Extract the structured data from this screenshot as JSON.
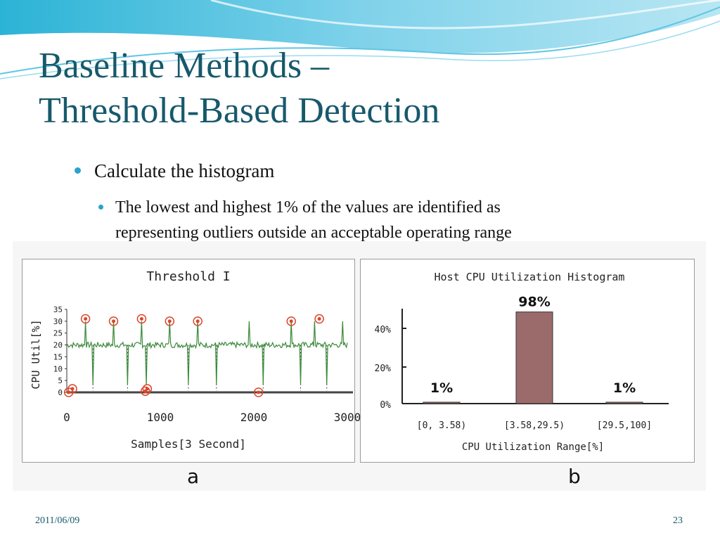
{
  "slide": {
    "title_line1": "Baseline Methods –",
    "title_line2": "Threshold-Based Detection",
    "bullet_main": "Calculate the histogram",
    "bullet_sub_line1": "The lowest and highest 1% of the values are identified as",
    "bullet_sub_line2": "representing outliers outside an acceptable operating range",
    "footer_date": "2011/06/09",
    "page_number": "23",
    "colors": {
      "title": "#17596b",
      "bullet": "#2aa3c8",
      "line": "#3a8a3a",
      "marker": "#d9472b",
      "bar": "#9b6b6b"
    }
  },
  "figure_labels": {
    "a": "a",
    "b": "b"
  },
  "chart_data": [
    {
      "type": "line",
      "title": "Threshold I",
      "xlabel": "Samples[3 Second]",
      "ylabel": "CPU Util[%]",
      "xlim": [
        0,
        3000
      ],
      "ylim": [
        0,
        35
      ],
      "x_ticks": [
        "0",
        "1000",
        "2000",
        "3000"
      ],
      "y_ticks": [
        "0",
        "5",
        "10",
        "15",
        "20",
        "25",
        "30",
        "35"
      ],
      "baseline": 20,
      "noise": 1.2,
      "spikes_up": [
        200,
        500,
        800,
        1100,
        1400,
        1950,
        2400,
        2650,
        2950
      ],
      "spikes_down": [
        280,
        650,
        850,
        1300,
        1600,
        2100,
        2500,
        2780
      ],
      "outliers": [
        {
          "x": 20,
          "y": 0
        },
        {
          "x": 60,
          "y": 1.5
        },
        {
          "x": 200,
          "y": 31
        },
        {
          "x": 500,
          "y": 30
        },
        {
          "x": 800,
          "y": 31
        },
        {
          "x": 840,
          "y": 0.5
        },
        {
          "x": 860,
          "y": 1.5
        },
        {
          "x": 1100,
          "y": 30
        },
        {
          "x": 1400,
          "y": 30
        },
        {
          "x": 2050,
          "y": 0
        },
        {
          "x": 2400,
          "y": 30
        },
        {
          "x": 2700,
          "y": 31
        }
      ]
    },
    {
      "type": "bar",
      "title": "Host CPU Utilization Histogram",
      "xlabel": "CPU Utilization Range[%]",
      "ylabel": "",
      "categories": [
        "[0,  3.58)",
        "[3.58,29.5)",
        "[29.5,100]"
      ],
      "values": [
        1,
        98,
        1
      ],
      "data_labels": [
        "1%",
        "98%",
        "1%"
      ],
      "y_ticks": [
        "0%",
        "20%",
        "40%"
      ]
    }
  ]
}
